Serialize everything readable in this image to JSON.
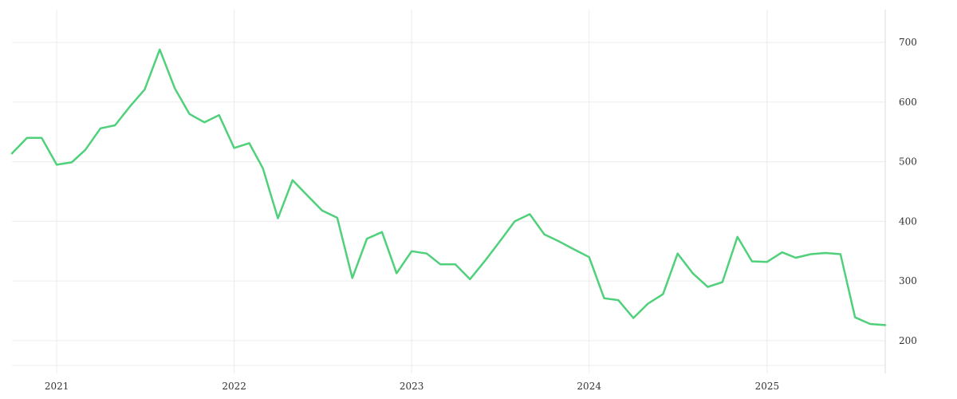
{
  "chart_data": {
    "type": "line",
    "title": "",
    "xlabel": "",
    "ylabel": "",
    "grid": true,
    "y_axis_position": "right",
    "line_color": "#4fd07a",
    "ylim": [
      145,
      755
    ],
    "xlim": [
      "2020-10-01",
      "2025-09-01"
    ],
    "x_ticks": [
      {
        "label": "2021",
        "date": "2021-01-01"
      },
      {
        "label": "2022",
        "date": "2022-01-01"
      },
      {
        "label": "2023",
        "date": "2023-01-01"
      },
      {
        "label": "2024",
        "date": "2024-01-01"
      },
      {
        "label": "2025",
        "date": "2025-01-01"
      }
    ],
    "y_ticks": [
      200,
      300,
      400,
      500,
      600,
      700
    ],
    "series": [
      {
        "x": [
          "2020-10",
          "2020-11",
          "2020-12",
          "2021-01",
          "2021-02",
          "2021-03",
          "2021-04",
          "2021-05",
          "2021-06",
          "2021-07",
          "2021-08",
          "2021-09",
          "2021-10",
          "2021-11",
          "2021-12",
          "2022-01",
          "2022-02",
          "2022-03",
          "2022-04",
          "2022-05",
          "2022-06",
          "2022-07",
          "2022-08",
          "2022-09",
          "2022-10",
          "2022-11",
          "2022-12",
          "2023-01",
          "2023-02",
          "2023-03",
          "2023-04",
          "2023-05",
          "2023-06",
          "2023-07",
          "2023-08",
          "2023-09",
          "2023-10",
          "2023-11",
          "2023-12",
          "2024-01",
          "2024-02",
          "2024-03",
          "2024-04",
          "2024-05",
          "2024-06",
          "2024-07",
          "2024-08",
          "2024-09",
          "2024-10",
          "2024-11",
          "2024-12",
          "2025-01",
          "2025-02",
          "2025-03",
          "2025-04",
          "2025-05",
          "2025-06",
          "2025-07",
          "2025-08",
          "2025-09"
        ],
        "values": [
          514,
          540,
          540,
          495,
          499,
          520,
          556,
          561,
          593,
          621,
          688,
          623,
          580,
          566,
          578,
          523,
          531,
          489,
          405,
          469,
          443,
          418,
          406,
          305,
          371,
          382,
          313,
          350,
          346,
          328,
          328,
          303,
          334,
          366,
          400,
          412,
          378,
          366,
          353,
          340,
          271,
          268,
          238,
          262,
          278,
          346,
          313,
          290,
          298,
          374,
          333,
          332,
          348,
          339,
          345,
          347,
          345,
          239,
          228,
          226
        ]
      }
    ]
  }
}
